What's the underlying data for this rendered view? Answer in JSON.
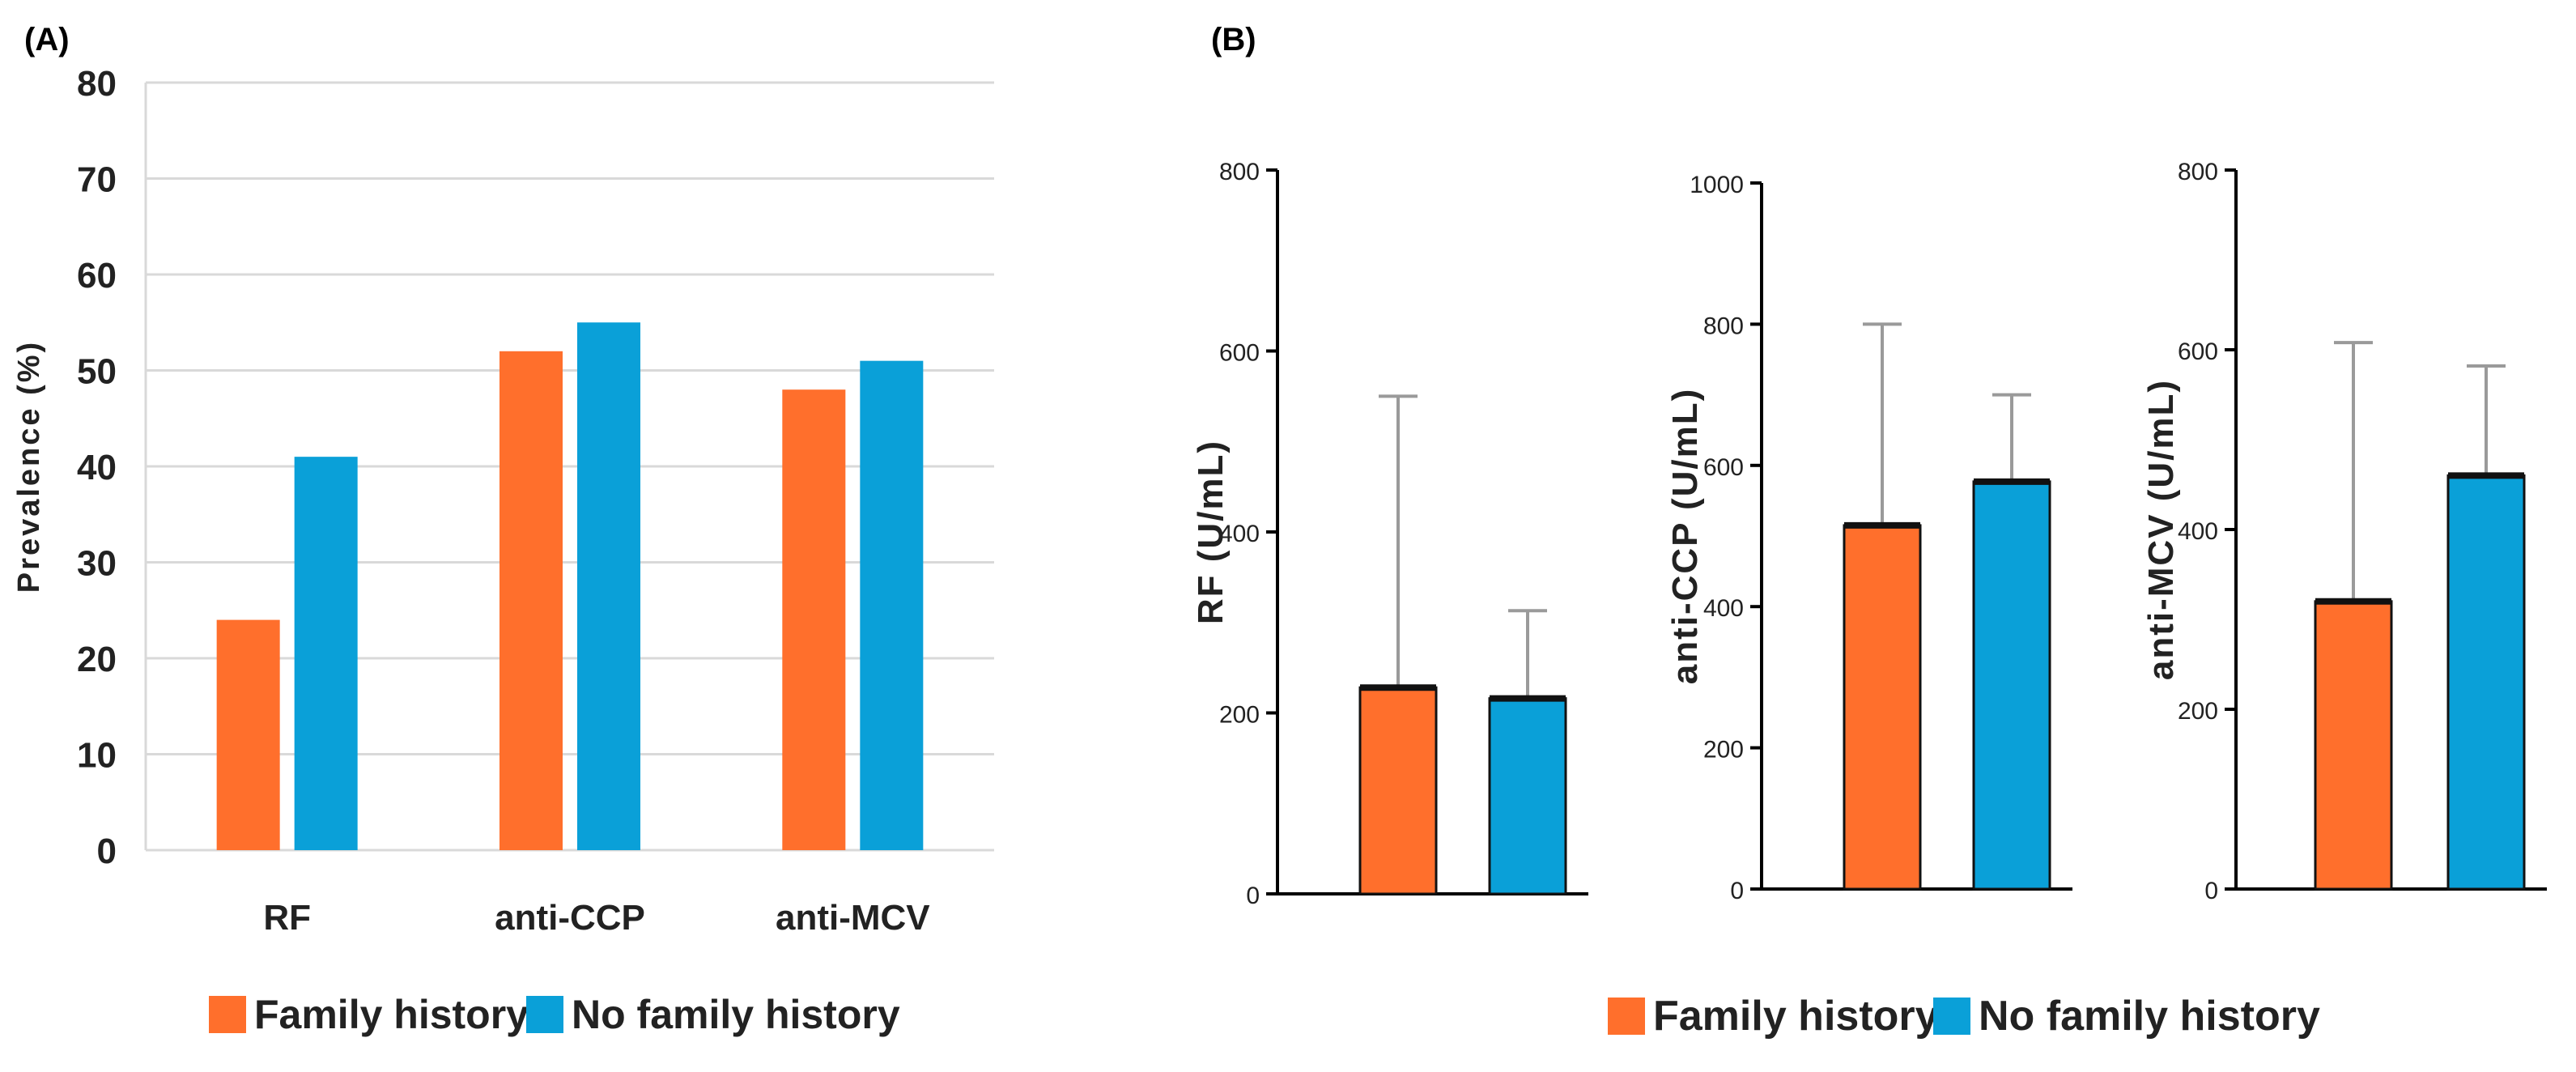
{
  "panel_a_label": "(A)",
  "panel_b_label": "(B)",
  "colors": {
    "family": "#ff6f2c",
    "nofamily": "#0aa0d8",
    "grid": "#d9d9d9",
    "axis": "#000000",
    "err": "#9a9a9a"
  },
  "chart_data": [
    {
      "id": "A",
      "type": "bar",
      "title": "",
      "ylabel": "Prevalence  (%)",
      "xlabel": "",
      "ylim": [
        0,
        80
      ],
      "yticks": [
        0,
        10,
        20,
        30,
        40,
        50,
        60,
        70,
        80
      ],
      "grid": true,
      "categories": [
        "RF",
        "anti-CCP",
        "anti-MCV"
      ],
      "series": [
        {
          "name": "Family history",
          "values": [
            24,
            52,
            48
          ]
        },
        {
          "name": "No family history",
          "values": [
            41,
            55,
            51
          ]
        }
      ],
      "legend": [
        "Family history",
        "No family history"
      ]
    },
    {
      "id": "B1",
      "type": "bar",
      "ylabel": "RF (U/mL)",
      "ylim": [
        0,
        800
      ],
      "yticks": [
        0,
        200,
        400,
        600,
        800
      ],
      "grid": false,
      "series": [
        {
          "name": "Family history",
          "value": 228,
          "error_upper": 550
        },
        {
          "name": "No family history",
          "value": 216,
          "error_upper": 313
        }
      ]
    },
    {
      "id": "B2",
      "type": "bar",
      "ylabel": "anti-CCP (U/mL)",
      "ylim": [
        0,
        1000
      ],
      "yticks": [
        0,
        200,
        400,
        600,
        800,
        1000
      ],
      "grid": false,
      "series": [
        {
          "name": "Family history",
          "value": 515,
          "error_upper": 800
        },
        {
          "name": "No family history",
          "value": 577,
          "error_upper": 700
        }
      ]
    },
    {
      "id": "B3",
      "type": "bar",
      "ylabel": "anti-MCV (U/mL)",
      "ylim": [
        0,
        800
      ],
      "yticks": [
        0,
        200,
        400,
        600,
        800
      ],
      "grid": false,
      "series": [
        {
          "name": "Family history",
          "value": 320,
          "error_upper": 608
        },
        {
          "name": "No family history",
          "value": 460,
          "error_upper": 582
        }
      ]
    }
  ],
  "legend_b": [
    "Family history",
    "No family history"
  ]
}
